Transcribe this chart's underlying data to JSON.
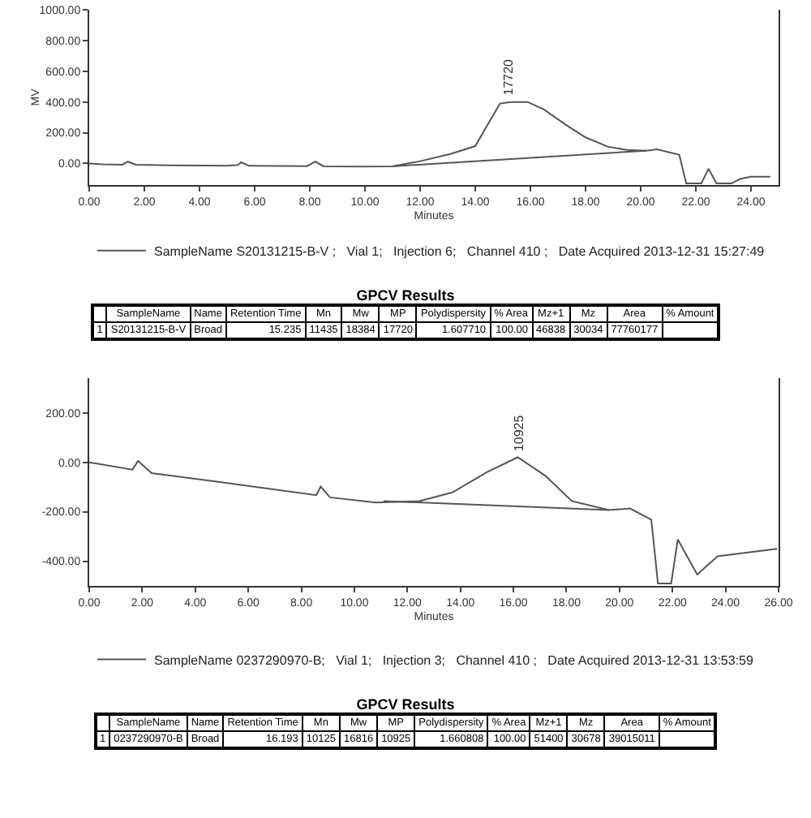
{
  "chart_data": [
    {
      "type": "line",
      "xlabel": "Minutes",
      "ylabel": "MV",
      "xlim": [
        0,
        25
      ],
      "xticks": [
        {
          "value": 0,
          "label": "0.00"
        },
        {
          "value": 2,
          "label": "2.00"
        },
        {
          "value": 4,
          "label": "4.00"
        },
        {
          "value": 6,
          "label": "6.00"
        },
        {
          "value": 8,
          "label": "8.00"
        },
        {
          "value": 10,
          "label": "10.00"
        },
        {
          "value": 12,
          "label": "12.00"
        },
        {
          "value": 14,
          "label": "14.00"
        },
        {
          "value": 16,
          "label": "16.00"
        },
        {
          "value": 18,
          "label": "18.00"
        },
        {
          "value": 20,
          "label": "20.00"
        },
        {
          "value": 22,
          "label": "22.00"
        },
        {
          "value": 24,
          "label": "24.00"
        }
      ],
      "ylim": [
        -140,
        1000
      ],
      "yticks": [
        {
          "value": 0,
          "label": "0.00"
        },
        {
          "value": 200,
          "label": "200.00"
        },
        {
          "value": 400,
          "label": "400.00"
        },
        {
          "value": 600,
          "label": "600.00"
        },
        {
          "value": 800,
          "label": "800.00"
        },
        {
          "value": 1000,
          "label": "1000.00"
        }
      ],
      "grid": false,
      "legend": "bottom",
      "marker": "none",
      "line_style": "solid",
      "annotations": [
        {
          "text": "17720",
          "x": 15.2,
          "y": 400
        }
      ],
      "series": [
        {
          "name": "SampleName S20131215-B-V ;   Vial 1;   Injection 6;   Channel 410 ;   Date Acquired 2013-12-31 15:27:49",
          "color": "#555555",
          "x": [
            0,
            0.5,
            1.2,
            1.4,
            1.7,
            3,
            5,
            5.4,
            5.5,
            5.8,
            7.9,
            8.2,
            8.5,
            10,
            11,
            12,
            13.1,
            14,
            14.55,
            14.9,
            15.3,
            15.9,
            16.5,
            17.3,
            18,
            18.8,
            19.5,
            20.2,
            20.6,
            21.4,
            21.65,
            22.2,
            22.46,
            22.75,
            23.3,
            23.6,
            24,
            24.7
          ],
          "values": [
            0,
            -5,
            -8,
            12,
            -8,
            -12,
            -15,
            -10,
            8,
            -15,
            -17,
            12,
            -18,
            -20,
            -18,
            15,
            62,
            113,
            283,
            390,
            400,
            400,
            350,
            250,
            170,
            110,
            88,
            83,
            92,
            56,
            -130,
            -130,
            -34,
            -130,
            -130,
            -100,
            -86,
            -86
          ]
        },
        {
          "color": "#555555",
          "x": [
            11,
            20.2
          ],
          "values": [
            -18,
            83
          ]
        }
      ]
    },
    {
      "type": "other",
      "title": "GPCV Results",
      "annotations": [
        "SampleName",
        "Name",
        "Retention Time",
        "Mn",
        "Mw",
        "MP",
        "Polydispersity",
        "% Area",
        "Mz+1",
        "Mz",
        "Area",
        "% Amount",
        "1",
        "S20131215-B-V",
        "Broad",
        "15.235",
        "11435",
        "18384",
        "17720",
        "1.607710",
        "100.00",
        "46838",
        "30034",
        "77760177"
      ]
    },
    {
      "type": "line",
      "xlabel": "Minutes",
      "xlim": [
        0,
        26
      ],
      "xticks": [
        {
          "value": 0,
          "label": "0.00"
        },
        {
          "value": 2,
          "label": "2.00"
        },
        {
          "value": 4,
          "label": "4.00"
        },
        {
          "value": 6,
          "label": "6.00"
        },
        {
          "value": 8,
          "label": "8.00"
        },
        {
          "value": 10,
          "label": "10.00"
        },
        {
          "value": 12,
          "label": "12.00"
        },
        {
          "value": 14,
          "label": "14.00"
        },
        {
          "value": 16,
          "label": "16.00"
        },
        {
          "value": 18,
          "label": "18.00"
        },
        {
          "value": 20,
          "label": "20.00"
        },
        {
          "value": 22,
          "label": "22.00"
        },
        {
          "value": 24,
          "label": "24.00"
        },
        {
          "value": 26,
          "label": "26.00"
        }
      ],
      "ylim": [
        -500,
        340
      ],
      "yticks": [
        {
          "value": -400,
          "label": "-400.00"
        },
        {
          "value": -200,
          "label": "-200.00"
        },
        {
          "value": 0,
          "label": "0.00"
        },
        {
          "value": 200,
          "label": "200.00"
        }
      ],
      "grid": false,
      "legend": "bottom",
      "marker": "none",
      "line_style": "solid",
      "annotations": [
        {
          "text": "10925",
          "x": 16.2,
          "y": 20
        }
      ],
      "series": [
        {
          "name": "SampleName 0237290970-B;   Vial 1;   Injection 3;   Channel 410 ;   Date Acquired 2013-12-31 13:53:59",
          "color": "#555555",
          "x": [
            0,
            1.63,
            1.84,
            2.35,
            4.7,
            8.57,
            8.73,
            9.08,
            10.8,
            12.45,
            13.7,
            15,
            16.16,
            17.2,
            18.2,
            19.6,
            20.4,
            21.2,
            21.45,
            21.95,
            22.2,
            22.93,
            23.7,
            25.95
          ],
          "values": [
            0,
            -30,
            5,
            -44,
            -77,
            -133,
            -98,
            -142,
            -163,
            -157,
            -122,
            -40,
            20,
            -54,
            -157,
            -193,
            -187,
            -232,
            -490,
            -490,
            -312,
            -454,
            -380,
            -350
          ]
        },
        {
          "color": "#555555",
          "x": [
            11.1,
            19.6
          ],
          "values": [
            -157,
            -193
          ]
        }
      ]
    },
    {
      "type": "other",
      "title": "GPCV Results",
      "annotations": [
        "SampleName",
        "Name",
        "Retention Time",
        "Mn",
        "Mw",
        "MP",
        "Polydispersity",
        "% Area",
        "Mz+1",
        "Mz",
        "Area",
        "% Amount",
        "1",
        "0237290970-B",
        "Broad",
        "16.193",
        "10125",
        "16816",
        "10925",
        "1.660808",
        "100.00",
        "51400",
        "30678",
        "39015011"
      ]
    }
  ]
}
